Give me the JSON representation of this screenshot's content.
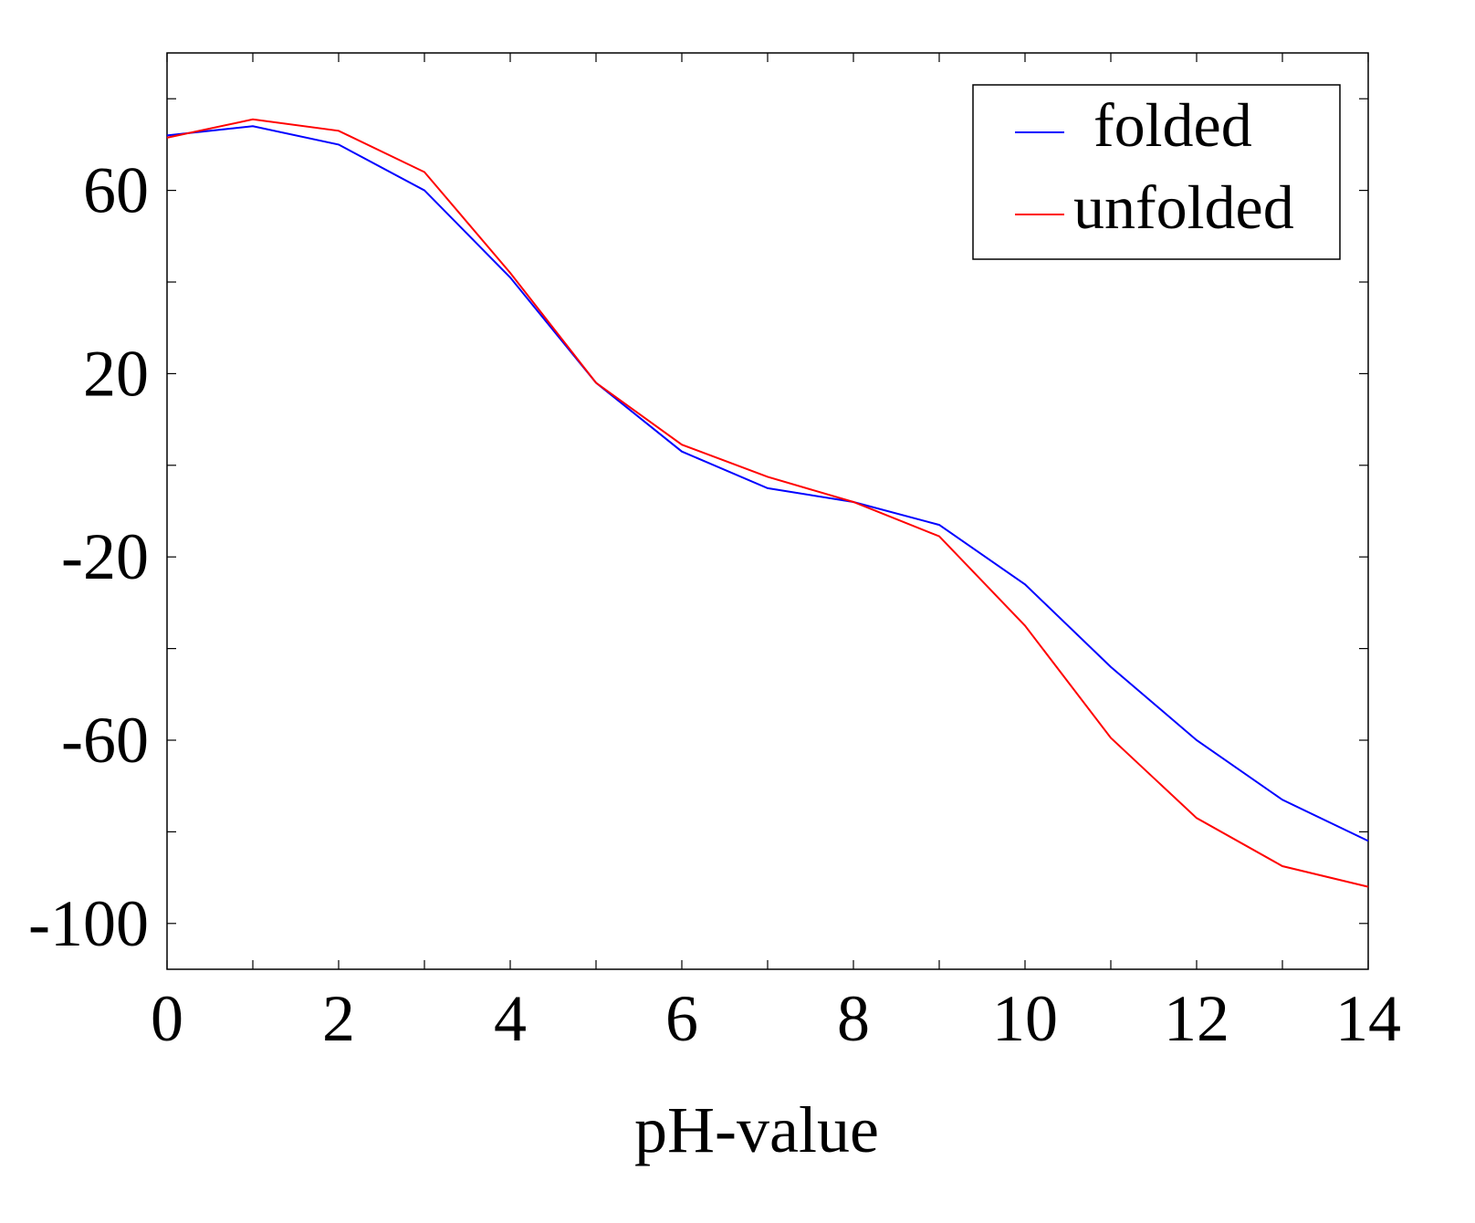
{
  "chart_data": {
    "type": "line",
    "title": "",
    "xlabel": "pH-value",
    "ylabel": "",
    "xlim": [
      0,
      14
    ],
    "ylim": [
      -110,
      90
    ],
    "xticks": [
      0,
      2,
      4,
      6,
      8,
      10,
      12,
      14
    ],
    "xtick_labels": [
      "0",
      "2",
      "4",
      "6",
      "8",
      "10",
      "12",
      "14"
    ],
    "yticks": [
      -100,
      -60,
      -20,
      20,
      60
    ],
    "ytick_labels": [
      "-100",
      "-60",
      "-20",
      "20",
      "60"
    ],
    "minor_yticks": [
      -80,
      -40,
      0,
      40,
      80
    ],
    "minor_xticks": [
      1,
      3,
      5,
      7,
      9,
      11,
      13
    ],
    "grid": false,
    "legend_position": "top-right",
    "x": [
      0,
      1,
      2,
      3,
      4,
      5,
      6,
      7,
      8,
      9,
      10,
      11,
      12,
      13,
      14
    ],
    "series": [
      {
        "name": "folded",
        "color": "#0000ff",
        "values": [
          72,
          74,
          70,
          60,
          41,
          18,
          3,
          -5,
          -8,
          -13,
          -26,
          -44,
          -60,
          -73,
          -82
        ]
      },
      {
        "name": "unfolded",
        "color": "#ff0000",
        "values": [
          71.5,
          75.5,
          73,
          64,
          42,
          18,
          4.5,
          -2.5,
          -8,
          -15.5,
          -35,
          -59.5,
          -77,
          -87.5,
          -92
        ]
      }
    ]
  }
}
